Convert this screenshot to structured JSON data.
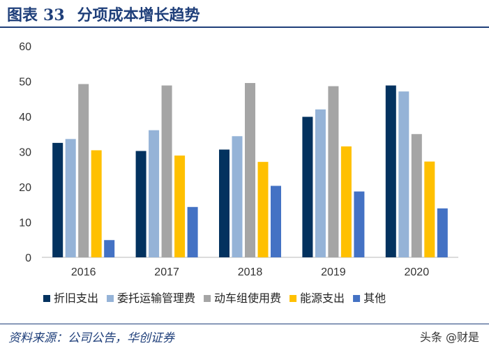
{
  "header": {
    "label": "图表",
    "number": "33",
    "title": "分项成本增长趋势"
  },
  "source": "资料来源：公司公告，华创证券",
  "watermark": "头条 @财是",
  "chart_data": {
    "type": "bar",
    "categories": [
      "2016",
      "2017",
      "2018",
      "2019",
      "2020"
    ],
    "ylim": [
      0,
      60
    ],
    "yticks": [
      "0",
      "10",
      "20",
      "30",
      "40",
      "50",
      "60"
    ],
    "grid": false,
    "legend": "bottom",
    "series": [
      {
        "name": "折旧支出",
        "color": "#03325f",
        "values": [
          32.5,
          30.2,
          30.6,
          39.9,
          48.8
        ]
      },
      {
        "name": "委托运输管理费",
        "color": "#95b3d7",
        "values": [
          33.6,
          36.1,
          34.4,
          42.0,
          47.1
        ]
      },
      {
        "name": "动车组使用费",
        "color": "#a5a5a5",
        "values": [
          49.2,
          48.8,
          49.5,
          48.6,
          35.0
        ]
      },
      {
        "name": "能源支出",
        "color": "#ffc000",
        "values": [
          30.4,
          28.9,
          27.1,
          31.5,
          27.2
        ]
      },
      {
        "name": "其他",
        "color": "#4472c4",
        "values": [
          4.9,
          14.3,
          20.3,
          18.7,
          13.9
        ]
      }
    ]
  }
}
